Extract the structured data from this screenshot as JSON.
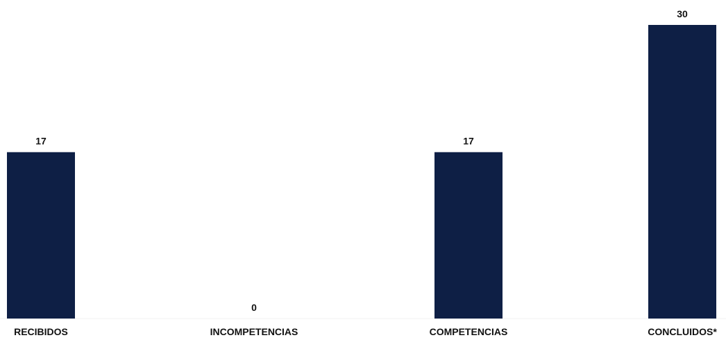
{
  "chart_data": {
    "type": "bar",
    "title": "",
    "xlabel": "",
    "ylabel": "",
    "categories": [
      "RECIBIDOS",
      "INCOMPETENCIAS",
      "COMPETENCIAS",
      "CONCLUIDOS*"
    ],
    "values": [
      17,
      0,
      17,
      30
    ],
    "value_labels": [
      "17",
      "0",
      "17",
      "30"
    ],
    "ylim": [
      0,
      30
    ],
    "grid": false,
    "legend": "none",
    "bar_color": "#0e1f45"
  }
}
